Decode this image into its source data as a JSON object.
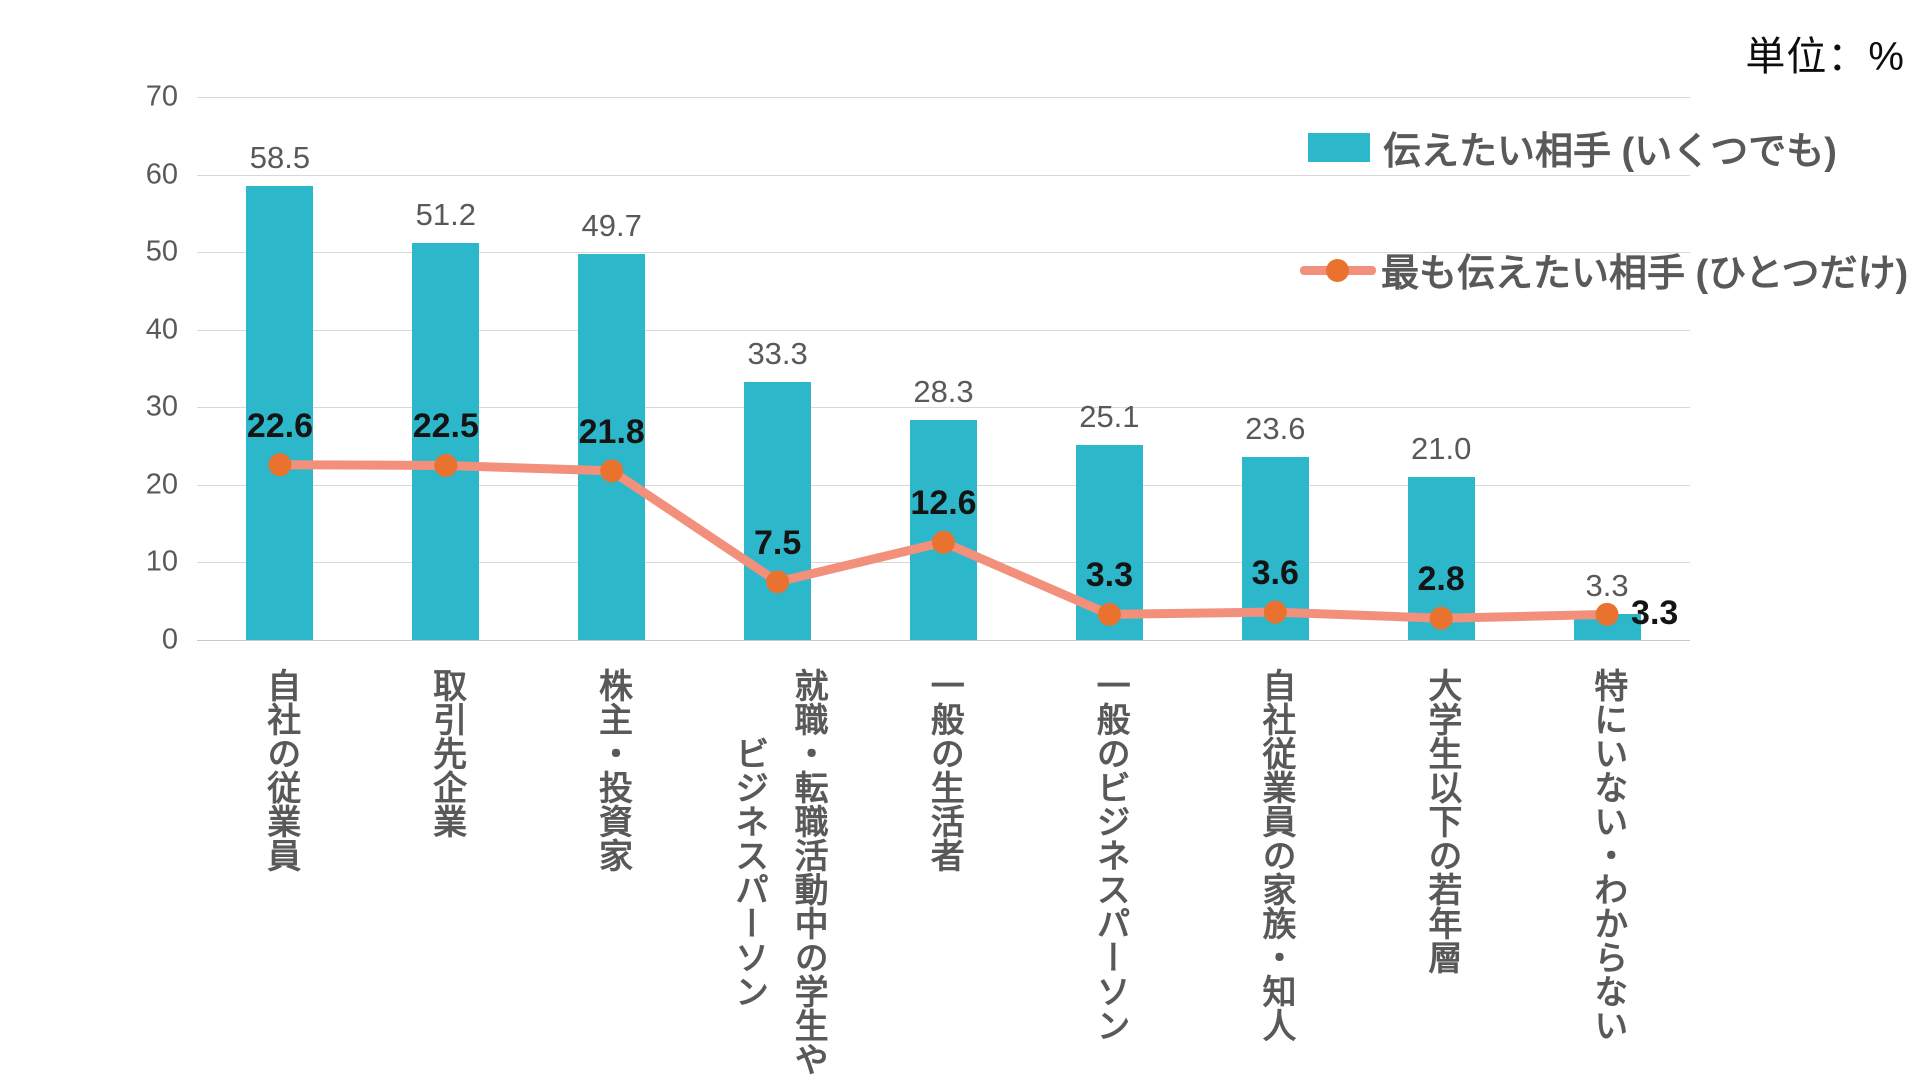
{
  "unit_label": "単位：%",
  "legend": [
    {
      "label": "伝えたい相手 (いくつでも)",
      "type": "bar",
      "color": "#2CB8CA"
    },
    {
      "label": "最も伝えたい相手 (ひとつだけ)",
      "type": "line",
      "color": "#F2907C",
      "marker_color": "#E9722E"
    }
  ],
  "chart_data": {
    "type": "bar",
    "subtype": "bar-line-combo",
    "title": "",
    "unit": "%",
    "categories": [
      "自社の従業員",
      "取引先企業",
      "株主・投資家",
      "就職・転職活動中の学生や\nビジネスパーソン",
      "一般の生活者",
      "一般のビジネスパーソン",
      "自社従業員の家族・知人",
      "大学生以下の若年層",
      "特にいない・わからない"
    ],
    "series": [
      {
        "name": "伝えたい相手 (いくつでも)",
        "type": "bar",
        "color": "#2CB8CA",
        "values": [
          58.5,
          51.2,
          49.7,
          33.3,
          28.3,
          25.1,
          23.6,
          21.0,
          3.3
        ]
      },
      {
        "name": "最も伝えたい相手 (ひとつだけ)",
        "type": "line",
        "color": "#F2907C",
        "marker_color": "#E9722E",
        "values": [
          22.6,
          22.5,
          21.8,
          7.5,
          12.6,
          3.3,
          3.6,
          2.8,
          3.3
        ]
      }
    ],
    "xlabel": "",
    "ylabel": "",
    "ylim": [
      0,
      70
    ],
    "yticks": [
      0,
      10,
      20,
      30,
      40,
      50,
      60,
      70
    ],
    "grid": true,
    "legend_position": "top-right",
    "value_label_colors": {
      "bar": "#595959",
      "line": "#141414"
    }
  }
}
